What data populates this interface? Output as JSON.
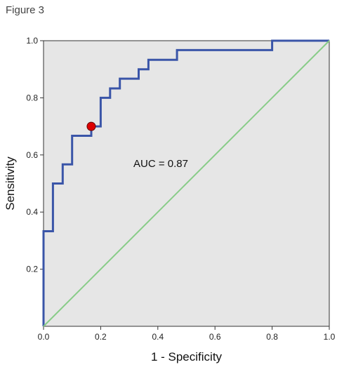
{
  "figure": {
    "label": "Figure 3"
  },
  "chart_data": {
    "type": "line",
    "xlabel": "1 - Specificity",
    "ylabel": "Sensitivity",
    "xlim": [
      0,
      1
    ],
    "ylim": [
      0,
      1
    ],
    "xticks": [
      "0.0",
      "0.2",
      "0.4",
      "0.6",
      "0.8",
      "1.0"
    ],
    "yticks": [
      "0.2",
      "0.4",
      "0.6",
      "0.8",
      "1.0"
    ],
    "plot_background": "#e6e6e6",
    "grid": false,
    "annotation": "AUC = 0.87",
    "series": [
      {
        "kind": "roc-curve",
        "color": "#3a55a8",
        "points": [
          [
            0,
            0
          ],
          [
            0,
            0.333
          ],
          [
            0.033,
            0.333
          ],
          [
            0.033,
            0.5
          ],
          [
            0.067,
            0.5
          ],
          [
            0.067,
            0.567
          ],
          [
            0.1,
            0.567
          ],
          [
            0.1,
            0.667
          ],
          [
            0.167,
            0.667
          ],
          [
            0.167,
            0.7
          ],
          [
            0.2,
            0.7
          ],
          [
            0.2,
            0.8
          ],
          [
            0.233,
            0.8
          ],
          [
            0.233,
            0.833
          ],
          [
            0.267,
            0.833
          ],
          [
            0.267,
            0.867
          ],
          [
            0.333,
            0.867
          ],
          [
            0.333,
            0.9
          ],
          [
            0.367,
            0.9
          ],
          [
            0.367,
            0.933
          ],
          [
            0.467,
            0.933
          ],
          [
            0.467,
            0.967
          ],
          [
            0.8,
            0.967
          ],
          [
            0.8,
            1.0
          ],
          [
            1.0,
            1.0
          ]
        ]
      },
      {
        "kind": "reference-diagonal",
        "color": "#88cc88",
        "points": [
          [
            0,
            0
          ],
          [
            1,
            1
          ]
        ]
      }
    ],
    "marker": {
      "x": 0.167,
      "y": 0.7,
      "color": "#dd0000"
    }
  }
}
